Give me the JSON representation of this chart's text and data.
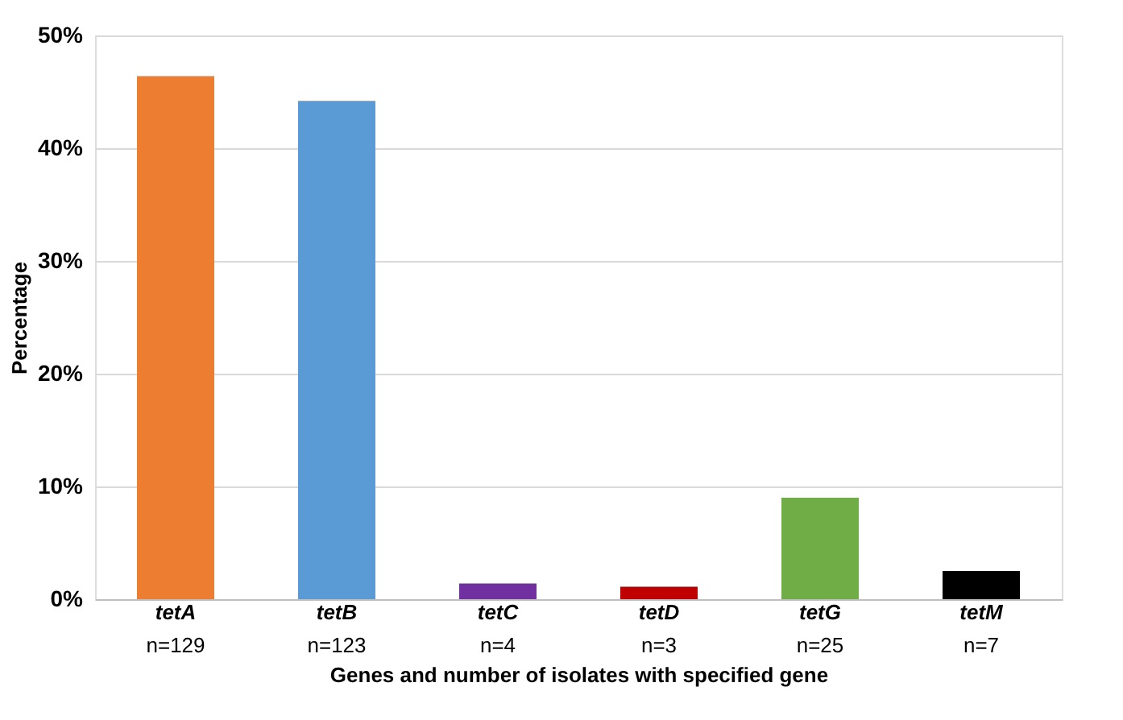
{
  "chart_data": {
    "type": "bar",
    "categories": [
      "tetA\nn=129",
      "tetB\nn=123",
      "tetC\nn=4",
      "tetD\nn=3",
      "tetG\nn=25",
      "tetM\nn=7"
    ],
    "values": [
      46.4,
      44.2,
      1.4,
      1.1,
      9.0,
      2.5
    ],
    "colors": [
      "#ed7d31",
      "#5b9bd5",
      "#7030a0",
      "#c00000",
      "#70ad47",
      "#000000"
    ],
    "xlabel": "Genes and number of isolates with specified gene",
    "ylabel": "Percentage",
    "ylim": [
      0,
      50
    ],
    "yticks": [
      {
        "value": 0,
        "label": "0%"
      },
      {
        "value": 10,
        "label": "10%"
      },
      {
        "value": 20,
        "label": "20%"
      },
      {
        "value": 30,
        "label": "30%"
      },
      {
        "value": 40,
        "label": "40%"
      },
      {
        "value": 50,
        "label": "50%"
      }
    ],
    "grid": "y"
  }
}
